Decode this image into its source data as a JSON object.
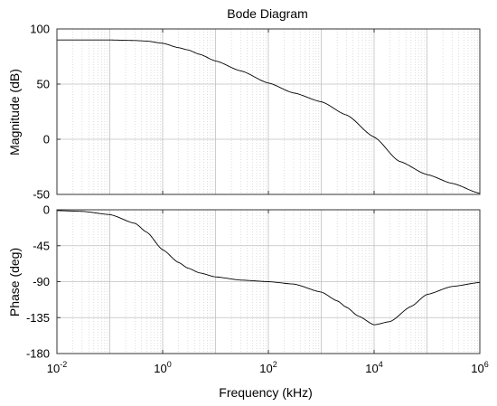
{
  "chart_data": {
    "type": "line",
    "title": "Bode Diagram",
    "xlabel": "Frequency  (kHz)",
    "xscale": "log",
    "xlim": [
      0.01,
      1000000
    ],
    "x_ticks": [
      {
        "base": "10",
        "exp": "-2"
      },
      {
        "base": "10",
        "exp": "0"
      },
      {
        "base": "10",
        "exp": "2"
      },
      {
        "base": "10",
        "exp": "4"
      },
      {
        "base": "10",
        "exp": "6"
      }
    ],
    "grid": true,
    "magnitude": {
      "ylabel": "Magnitude (dB)",
      "ylim": [
        -50,
        100
      ],
      "yticks": [
        "100",
        "50",
        "0",
        "-50"
      ],
      "series": [
        {
          "x": [
            0.01,
            0.03,
            0.1,
            0.3,
            0.5,
            1,
            2,
            3,
            5,
            10,
            30,
            100,
            300,
            1000,
            3000,
            10000,
            30000,
            100000,
            300000,
            1000000
          ],
          "values": [
            90,
            90,
            90,
            89.5,
            89,
            87,
            83,
            81,
            77,
            71,
            62,
            51,
            42,
            34,
            22,
            2,
            -20,
            -32,
            -40,
            -49
          ]
        }
      ]
    },
    "phase": {
      "ylabel": "Phase (deg)",
      "ylim": [
        -180,
        0
      ],
      "yticks": [
        "0",
        "-45",
        "-90",
        "-135",
        "-180"
      ],
      "series": [
        {
          "x": [
            0.01,
            0.03,
            0.1,
            0.3,
            0.5,
            1,
            2,
            3,
            5,
            10,
            30,
            100,
            300,
            1000,
            2000,
            3000,
            5000,
            10000,
            20000,
            50000,
            100000,
            300000,
            1000000
          ],
          "values": [
            -1,
            -2,
            -6,
            -17,
            -28,
            -50,
            -66,
            -73,
            -79,
            -84,
            -88,
            -90,
            -93,
            -103,
            -114,
            -122,
            -133,
            -144,
            -140,
            -121,
            -106,
            -96,
            -91
          ]
        }
      ]
    }
  }
}
